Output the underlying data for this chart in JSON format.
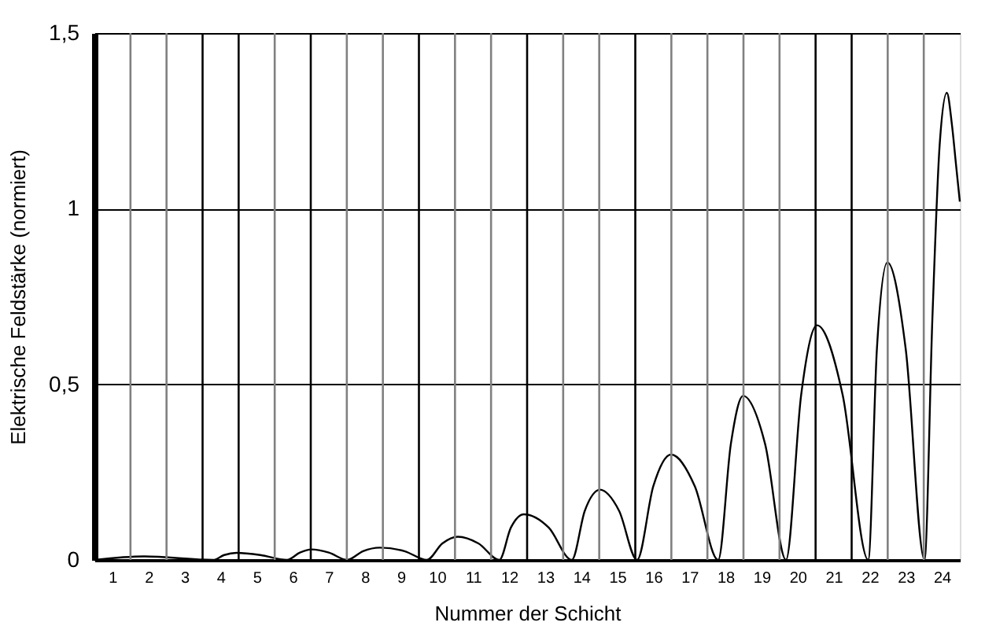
{
  "chart_data": {
    "type": "line",
    "xlabel": "Nummer der Schicht",
    "ylabel": "Elektrische Feldstärke (normiert)",
    "x": [
      0.5,
      1.88,
      3.79,
      4.1,
      4.44,
      5.1,
      5.84,
      6.2,
      6.52,
      7.0,
      7.51,
      7.95,
      8.41,
      9.1,
      9.72,
      10.15,
      10.58,
      11.15,
      11.73,
      12.05,
      12.41,
      13.1,
      13.74,
      14.1,
      14.52,
      15.05,
      15.55,
      16.0,
      16.49,
      17.15,
      17.8,
      18.15,
      18.49,
      19.1,
      19.68,
      20.1,
      20.54,
      21.25,
      21.96,
      22.2,
      22.49,
      23.0,
      23.52,
      23.74,
      23.94,
      24.14,
      24.28,
      24.39,
      24.5
    ],
    "series": [
      {
        "color": "#000000",
        "values": [
          0,
          0.01,
          0,
          0.014,
          0.02,
          0.014,
          0,
          0.021,
          0.03,
          0.021,
          0,
          0.025,
          0.035,
          0.025,
          0,
          0.047,
          0.066,
          0.047,
          0,
          0.092,
          0.13,
          0.092,
          0,
          0.14,
          0.2,
          0.14,
          0,
          0.21,
          0.3,
          0.21,
          0,
          0.33,
          0.467,
          0.33,
          0,
          0.47,
          0.668,
          0.47,
          0,
          0.6,
          0.847,
          0.6,
          0,
          0.69,
          1.18,
          1.33,
          1.24,
          1.13,
          1.02
        ]
      }
    ],
    "xlim": [
      0.5,
      24.5
    ],
    "xticks": [
      1,
      2,
      3,
      4,
      5,
      6,
      7,
      8,
      9,
      10,
      11,
      12,
      13,
      14,
      15,
      16,
      17,
      18,
      19,
      20,
      21,
      22,
      23,
      24
    ],
    "ylim": [
      0,
      1.5
    ],
    "yticks": [
      0,
      {
        "value": 0.5,
        "label": "0,5"
      },
      1,
      {
        "value": 1.5,
        "label": "1,5"
      }
    ],
    "grid": "y",
    "marker": "none",
    "line_style": "solid",
    "ref_lines": [
      {
        "axis": "x",
        "value": 1.5,
        "color": "#808080"
      },
      {
        "axis": "x",
        "value": 2.5,
        "color": "#808080"
      },
      {
        "axis": "x",
        "value": 3.5,
        "color": "#000000"
      },
      {
        "axis": "x",
        "value": 4.5,
        "color": "#000000"
      },
      {
        "axis": "x",
        "value": 5.5,
        "color": "#808080"
      },
      {
        "axis": "x",
        "value": 6.5,
        "color": "#000000"
      },
      {
        "axis": "x",
        "value": 7.5,
        "color": "#808080"
      },
      {
        "axis": "x",
        "value": 8.5,
        "color": "#808080"
      },
      {
        "axis": "x",
        "value": 9.5,
        "color": "#000000"
      },
      {
        "axis": "x",
        "value": 10.5,
        "color": "#808080"
      },
      {
        "axis": "x",
        "value": 11.5,
        "color": "#808080"
      },
      {
        "axis": "x",
        "value": 12.5,
        "color": "#000000"
      },
      {
        "axis": "x",
        "value": 13.5,
        "color": "#808080"
      },
      {
        "axis": "x",
        "value": 14.5,
        "color": "#808080"
      },
      {
        "axis": "x",
        "value": 15.5,
        "color": "#000000"
      },
      {
        "axis": "x",
        "value": 16.5,
        "color": "#808080"
      },
      {
        "axis": "x",
        "value": 17.5,
        "color": "#808080"
      },
      {
        "axis": "x",
        "value": 18.5,
        "color": "#808080"
      },
      {
        "axis": "x",
        "value": 19.5,
        "color": "#808080"
      },
      {
        "axis": "x",
        "value": 20.5,
        "color": "#000000"
      },
      {
        "axis": "x",
        "value": 21.5,
        "color": "#000000"
      },
      {
        "axis": "x",
        "value": 22.5,
        "color": "#808080"
      },
      {
        "axis": "x",
        "value": 23.5,
        "color": "#808080"
      }
    ]
  }
}
